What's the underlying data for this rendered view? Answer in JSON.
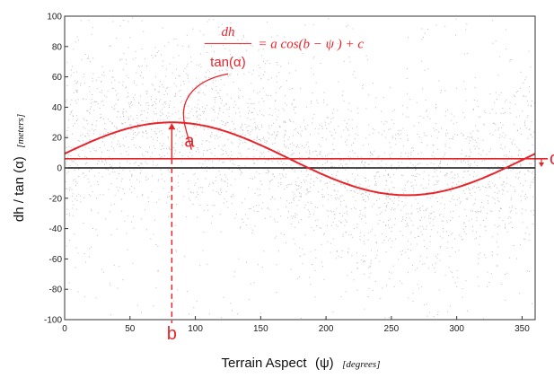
{
  "chart_data": {
    "type": "scatter",
    "xlabel": "Terrain Aspect",
    "xlabel_symbol": "(ψ)",
    "xlabel_unit": "[degrees]",
    "ylabel": "dh / tan (α)",
    "ylabel_unit": "[meters]",
    "xlim": [
      0,
      360
    ],
    "ylim": [
      -100,
      100
    ],
    "x_ticks": [
      0,
      50,
      100,
      150,
      200,
      250,
      300,
      350
    ],
    "y_ticks": [
      -100,
      -80,
      -60,
      -40,
      -20,
      0,
      20,
      40,
      60,
      80,
      100
    ],
    "scatter_description": "dense gray point cloud",
    "fit_curve": {
      "a": 24,
      "b": 82,
      "c": 6
    },
    "equation": {
      "lhs_numerator": "dh",
      "lhs_denominator": "tan(α)",
      "rhs": "= a cos(b − ψ ) + c"
    },
    "annotations": {
      "amplitude": "a",
      "phase": "b",
      "offset": "c"
    },
    "colors": {
      "fit": "#e8242b",
      "points": "#8c8c8c",
      "zero_line": "#111111"
    }
  }
}
